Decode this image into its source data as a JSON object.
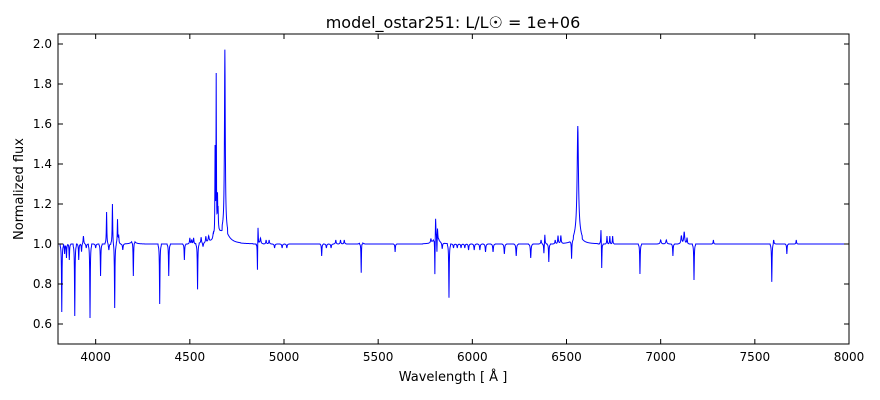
{
  "chart_data": {
    "type": "line",
    "title": "model_ostar251: L/L☉ = 1e+06",
    "xlabel": "Wavelength [ Å ]",
    "ylabel": "Normalized flux",
    "xlim": [
      3800,
      8000
    ],
    "ylim": [
      0.5,
      2.05
    ],
    "xticks": [
      4000,
      4500,
      5000,
      5500,
      6000,
      6500,
      7000,
      7500,
      8000
    ],
    "yticks": [
      0.6,
      0.8,
      1.0,
      1.2,
      1.4,
      1.6,
      1.8,
      2.0
    ],
    "xtick_labels": [
      "4000",
      "4500",
      "5000",
      "5500",
      "6000",
      "6500",
      "7000",
      "7500",
      "8000"
    ],
    "ytick_labels": [
      "0.6",
      "0.8",
      "1.0",
      "1.2",
      "1.4",
      "1.6",
      "1.8",
      "2.0"
    ],
    "grid": false,
    "series": [
      {
        "color": "#0000ff",
        "continuum": 1.0,
        "features": [
          {
            "w": 3820,
            "d": -0.34,
            "s": 1.5
          },
          {
            "w": 3835,
            "d": -0.05,
            "s": 1.5
          },
          {
            "w": 3845,
            "d": -0.07,
            "s": 1.5
          },
          {
            "w": 3860,
            "d": -0.08,
            "s": 1.5
          },
          {
            "w": 3889,
            "d": -0.36,
            "s": 1.5
          },
          {
            "w": 3910,
            "d": -0.08,
            "s": 1.5
          },
          {
            "w": 3925,
            "d": -0.04,
            "s": 1.5
          },
          {
            "w": 3935,
            "d": 0.04,
            "s": 2.0
          },
          {
            "w": 3950,
            "d": -0.02,
            "s": 2.0
          },
          {
            "w": 3970,
            "d": -0.37,
            "s": 1.5
          },
          {
            "w": 4000,
            "d": -0.02,
            "s": 2.0
          },
          {
            "w": 4026,
            "d": -0.16,
            "s": 1.5
          },
          {
            "w": 4058,
            "d": 0.16,
            "s": 1.5
          },
          {
            "w": 4070,
            "d": -0.03,
            "s": 2.0
          },
          {
            "w": 4089,
            "d": 0.2,
            "s": 1.5
          },
          {
            "w": 4101,
            "d": -0.32,
            "s": 1.5
          },
          {
            "w": 4116,
            "d": 0.12,
            "s": 1.5
          },
          {
            "w": 4122,
            "d": 0.04,
            "s": 2.0
          },
          {
            "w": 4144,
            "d": -0.03,
            "s": 2.0
          },
          {
            "w": 4200,
            "d": -0.18,
            "s": 1.5
          },
          {
            "w": 4200,
            "d": 0.02,
            "s": 10.0
          },
          {
            "w": 4340,
            "d": -0.3,
            "s": 1.5
          },
          {
            "w": 4388,
            "d": -0.16,
            "s": 1.5
          },
          {
            "w": 4471,
            "d": -0.08,
            "s": 1.5
          },
          {
            "w": 4500,
            "d": 0.03,
            "s": 2.0
          },
          {
            "w": 4510,
            "d": 0.02,
            "s": 2.0
          },
          {
            "w": 4520,
            "d": 0.03,
            "s": 2.0
          },
          {
            "w": 4541,
            "d": -0.23,
            "s": 1.5
          },
          {
            "w": 4560,
            "d": 0.03,
            "s": 2.0
          },
          {
            "w": 4570,
            "d": -0.02,
            "s": 2.0
          },
          {
            "w": 4585,
            "d": 0.03,
            "s": 2.0
          },
          {
            "w": 4600,
            "d": 0.03,
            "s": 3.0
          },
          {
            "w": 4625,
            "d": 0.03,
            "s": 3.0
          },
          {
            "w": 4634,
            "d": 0.42,
            "s": 1.2
          },
          {
            "w": 4640,
            "d": 0.78,
            "s": 1.2
          },
          {
            "w": 4647,
            "d": 0.15,
            "s": 1.2
          },
          {
            "w": 4650,
            "d": 0.1,
            "s": 1.5
          },
          {
            "w": 4686,
            "d": 0.9,
            "s": 2.5
          },
          {
            "w": 4650,
            "d": 0.05,
            "s": 20.0
          },
          {
            "w": 4686,
            "d": 0.06,
            "s": 25.0
          },
          {
            "w": 4859,
            "d": -0.15,
            "s": 1.2
          },
          {
            "w": 4862,
            "d": 0.1,
            "s": 1.5
          },
          {
            "w": 4875,
            "d": 0.03,
            "s": 3.0
          },
          {
            "w": 4905,
            "d": 0.02,
            "s": 2.0
          },
          {
            "w": 4921,
            "d": 0.02,
            "s": 2.0
          },
          {
            "w": 4950,
            "d": -0.02,
            "s": 2.0
          },
          {
            "w": 4990,
            "d": -0.02,
            "s": 2.0
          },
          {
            "w": 5015,
            "d": -0.02,
            "s": 2.0
          },
          {
            "w": 5200,
            "d": -0.06,
            "s": 1.5
          },
          {
            "w": 5225,
            "d": -0.02,
            "s": 2.0
          },
          {
            "w": 5250,
            "d": -0.02,
            "s": 2.0
          },
          {
            "w": 5275,
            "d": 0.02,
            "s": 2.0
          },
          {
            "w": 5300,
            "d": 0.02,
            "s": 2.0
          },
          {
            "w": 5320,
            "d": 0.02,
            "s": 2.0
          },
          {
            "w": 5410,
            "d": -0.18,
            "s": 1.5
          },
          {
            "w": 5411,
            "d": 0.04,
            "s": 3.0
          },
          {
            "w": 5590,
            "d": -0.04,
            "s": 1.5
          },
          {
            "w": 5780,
            "d": 0.02,
            "s": 2.0
          },
          {
            "w": 5801,
            "d": -0.2,
            "s": 1.2
          },
          {
            "w": 5805,
            "d": 0.1,
            "s": 1.5
          },
          {
            "w": 5812,
            "d": -0.1,
            "s": 1.5
          },
          {
            "w": 5815,
            "d": 0.06,
            "s": 1.5
          },
          {
            "w": 5808,
            "d": 0.05,
            "s": 12.0
          },
          {
            "w": 5840,
            "d": -0.03,
            "s": 2.0
          },
          {
            "w": 5876,
            "d": -0.27,
            "s": 1.5
          },
          {
            "w": 5900,
            "d": -0.02,
            "s": 2.0
          },
          {
            "w": 5920,
            "d": -0.02,
            "s": 2.0
          },
          {
            "w": 5940,
            "d": -0.02,
            "s": 2.0
          },
          {
            "w": 5960,
            "d": -0.02,
            "s": 2.0
          },
          {
            "w": 5980,
            "d": -0.03,
            "s": 2.0
          },
          {
            "w": 6010,
            "d": -0.03,
            "s": 2.0
          },
          {
            "w": 6040,
            "d": -0.03,
            "s": 2.0
          },
          {
            "w": 6070,
            "d": -0.04,
            "s": 2.0
          },
          {
            "w": 6110,
            "d": -0.04,
            "s": 2.0
          },
          {
            "w": 6170,
            "d": -0.05,
            "s": 2.0
          },
          {
            "w": 6233,
            "d": -0.06,
            "s": 2.0
          },
          {
            "w": 6310,
            "d": -0.07,
            "s": 2.0
          },
          {
            "w": 6365,
            "d": 0.02,
            "s": 2.0
          },
          {
            "w": 6380,
            "d": -0.05,
            "s": 1.5
          },
          {
            "w": 6385,
            "d": 0.05,
            "s": 1.5
          },
          {
            "w": 6406,
            "d": -0.09,
            "s": 1.5
          },
          {
            "w": 6440,
            "d": 0.02,
            "s": 2.0
          },
          {
            "w": 6455,
            "d": 0.04,
            "s": 2.0
          },
          {
            "w": 6470,
            "d": 0.04,
            "s": 2.0
          },
          {
            "w": 6527,
            "d": -0.09,
            "s": 1.5
          },
          {
            "w": 6560,
            "d": 0.52,
            "s": 4.0
          },
          {
            "w": 6560,
            "d": 0.07,
            "s": 18.0
          },
          {
            "w": 6683,
            "d": 0.08,
            "s": 1.5
          },
          {
            "w": 6687,
            "d": -0.13,
            "s": 1.2
          },
          {
            "w": 6715,
            "d": 0.04,
            "s": 1.5
          },
          {
            "w": 6730,
            "d": 0.04,
            "s": 1.5
          },
          {
            "w": 6745,
            "d": 0.04,
            "s": 1.5
          },
          {
            "w": 6890,
            "d": -0.15,
            "s": 1.5
          },
          {
            "w": 7000,
            "d": 0.02,
            "s": 3.0
          },
          {
            "w": 7030,
            "d": 0.02,
            "s": 3.0
          },
          {
            "w": 7065,
            "d": -0.06,
            "s": 1.5
          },
          {
            "w": 7110,
            "d": 0.04,
            "s": 3.0
          },
          {
            "w": 7125,
            "d": 0.06,
            "s": 3.0
          },
          {
            "w": 7140,
            "d": 0.03,
            "s": 2.0
          },
          {
            "w": 7177,
            "d": -0.18,
            "s": 1.5
          },
          {
            "w": 7280,
            "d": 0.02,
            "s": 1.5
          },
          {
            "w": 7590,
            "d": -0.19,
            "s": 1.5
          },
          {
            "w": 7600,
            "d": 0.02,
            "s": 2.0
          },
          {
            "w": 7670,
            "d": -0.05,
            "s": 1.5
          },
          {
            "w": 7720,
            "d": 0.02,
            "s": 1.5
          }
        ]
      }
    ]
  }
}
